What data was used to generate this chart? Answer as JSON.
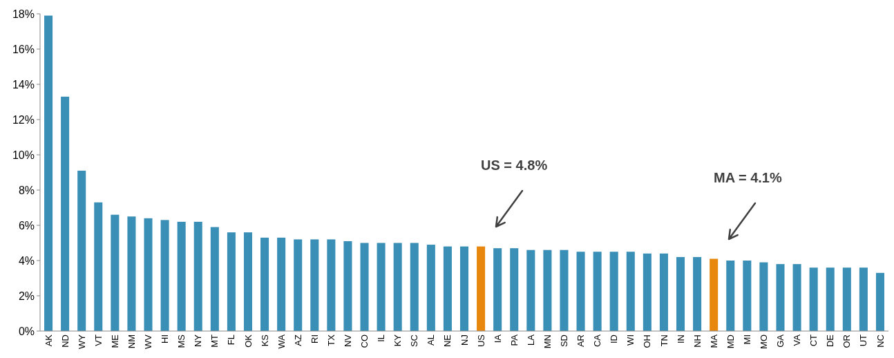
{
  "chart_data": {
    "type": "bar",
    "categories": [
      "AK",
      "ND",
      "WY",
      "VT",
      "ME",
      "NM",
      "WV",
      "HI",
      "MS",
      "NY",
      "MT",
      "FL",
      "OK",
      "KS",
      "WA",
      "AZ",
      "RI",
      "TX",
      "NV",
      "CO",
      "IL",
      "KY",
      "SC",
      "AL",
      "NE",
      "NJ",
      "US",
      "IA",
      "PA",
      "LA",
      "MN",
      "SD",
      "AR",
      "CA",
      "ID",
      "WI",
      "OH",
      "TN",
      "IN",
      "NH",
      "MA",
      "MD",
      "MI",
      "MO",
      "GA",
      "VA",
      "CT",
      "DE",
      "OR",
      "UT",
      "NC"
    ],
    "values": [
      17.9,
      13.3,
      9.1,
      7.3,
      6.6,
      6.5,
      6.4,
      6.3,
      6.2,
      6.2,
      5.9,
      5.6,
      5.6,
      5.3,
      5.3,
      5.2,
      5.2,
      5.2,
      5.1,
      5.0,
      5.0,
      5.0,
      5.0,
      4.9,
      4.8,
      4.8,
      4.8,
      4.7,
      4.7,
      4.6,
      4.6,
      4.6,
      4.5,
      4.5,
      4.5,
      4.5,
      4.4,
      4.4,
      4.2,
      4.2,
      4.1,
      4.0,
      4.0,
      3.9,
      3.8,
      3.8,
      3.6,
      3.6,
      3.6,
      3.6,
      3.3
    ],
    "colors": [
      "#3a8fb7",
      "#3a8fb7",
      "#3a8fb7",
      "#3a8fb7",
      "#3a8fb7",
      "#3a8fb7",
      "#3a8fb7",
      "#3a8fb7",
      "#3a8fb7",
      "#3a8fb7",
      "#3a8fb7",
      "#3a8fb7",
      "#3a8fb7",
      "#3a8fb7",
      "#3a8fb7",
      "#3a8fb7",
      "#3a8fb7",
      "#3a8fb7",
      "#3a8fb7",
      "#3a8fb7",
      "#3a8fb7",
      "#3a8fb7",
      "#3a8fb7",
      "#3a8fb7",
      "#3a8fb7",
      "#3a8fb7",
      "#e8870e",
      "#3a8fb7",
      "#3a8fb7",
      "#3a8fb7",
      "#3a8fb7",
      "#3a8fb7",
      "#3a8fb7",
      "#3a8fb7",
      "#3a8fb7",
      "#3a8fb7",
      "#3a8fb7",
      "#3a8fb7",
      "#3a8fb7",
      "#3a8fb7",
      "#e8870e",
      "#3a8fb7",
      "#3a8fb7",
      "#3a8fb7",
      "#3a8fb7",
      "#3a8fb7",
      "#3a8fb7",
      "#3a8fb7",
      "#3a8fb7",
      "#3a8fb7",
      "#3a8fb7"
    ],
    "ylim": [
      0,
      18
    ],
    "yticks": [
      {
        "value": 0,
        "label": "0%"
      },
      {
        "value": 2,
        "label": "2%"
      },
      {
        "value": 4,
        "label": "4%"
      },
      {
        "value": 6,
        "label": "6%"
      },
      {
        "value": 8,
        "label": "8%"
      },
      {
        "value": 10,
        "label": "10%"
      },
      {
        "value": 12,
        "label": "12%"
      },
      {
        "value": 14,
        "label": "14%"
      },
      {
        "value": 16,
        "label": "16%"
      },
      {
        "value": 18,
        "label": "18%"
      }
    ],
    "grid": false,
    "annotations": [
      "US = 4.8%",
      "MA = 4.1%"
    ]
  }
}
